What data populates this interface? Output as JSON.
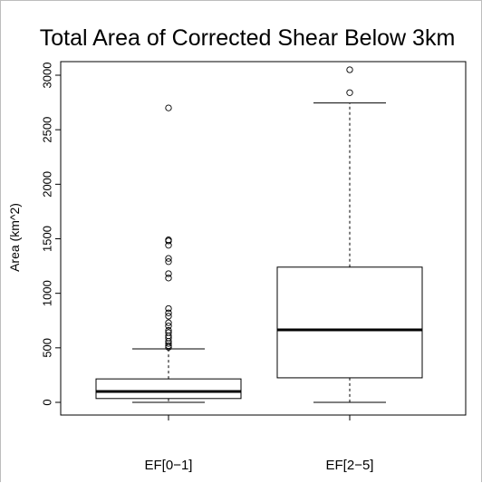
{
  "chart_data": {
    "type": "boxplot",
    "title": "Total Area of Corrected Shear Below 3km",
    "xlabel": "",
    "ylabel": "Area (km^2)",
    "ylim": [
      0,
      3000
    ],
    "yticks": [
      "0",
      "500",
      "1000",
      "1500",
      "2000",
      "2500",
      "3000"
    ],
    "categories": [
      "EF[0−1]",
      "EF[2−5]"
    ],
    "grid": false,
    "boxes": [
      {
        "category": "EF[0−1]",
        "whisker_low": 0,
        "q1": 35,
        "median": 100,
        "q3": 215,
        "whisker_high": 490,
        "outliers": [
          505,
          520,
          540,
          560,
          590,
          610,
          640,
          660,
          700,
          730,
          790,
          820,
          860,
          1140,
          1180,
          1290,
          1320,
          1440,
          1480,
          1490,
          2700
        ]
      },
      {
        "category": "EF[2−5]",
        "whisker_low": 0,
        "q1": 225,
        "median": 665,
        "q3": 1240,
        "whisker_high": 2745,
        "outliers": [
          2840,
          3050
        ]
      }
    ]
  }
}
